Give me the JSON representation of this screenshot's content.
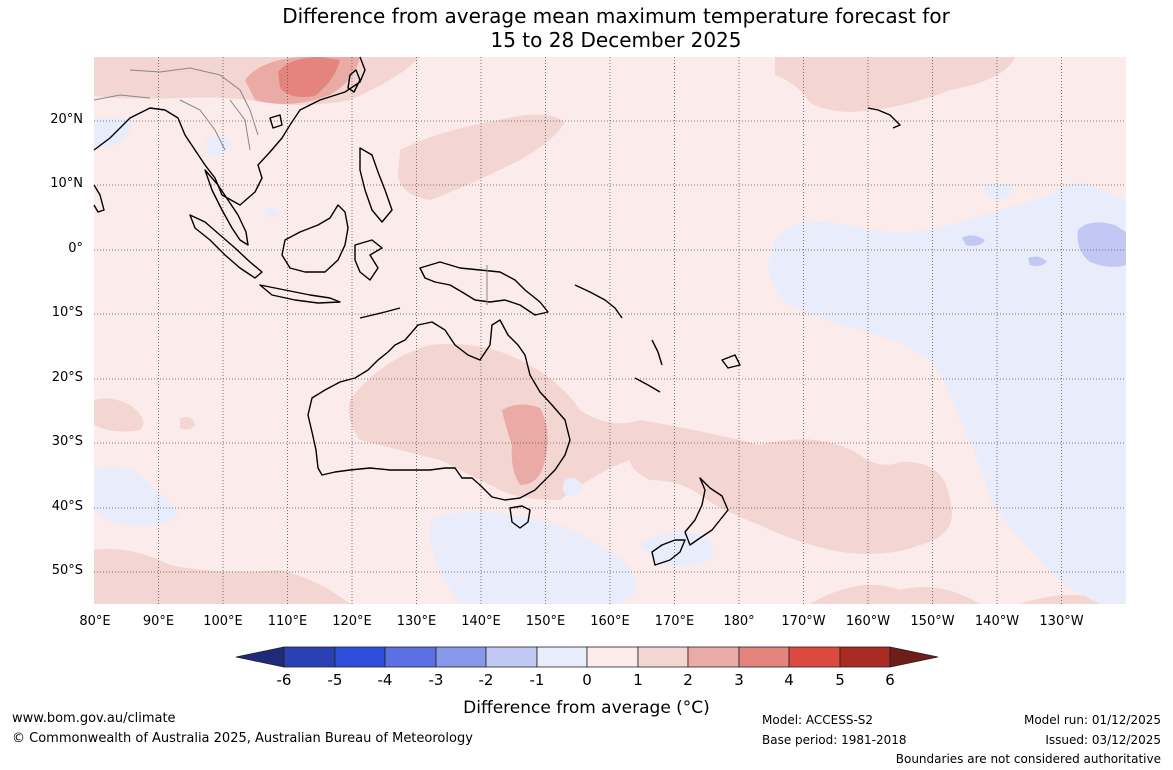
{
  "title": {
    "line1": "Difference from average mean maximum temperature forecast for",
    "line2": "15 to 28 December 2025"
  },
  "map": {
    "lat_labels": [
      "20°N",
      "10°N",
      "0°",
      "10°S",
      "20°S",
      "30°S",
      "40°S",
      "50°S"
    ],
    "lon_labels": [
      "80°E",
      "90°E",
      "100°E",
      "110°E",
      "120°E",
      "130°E",
      "140°E",
      "150°E",
      "160°E",
      "170°E",
      "180°",
      "170°W",
      "160°W",
      "150°W",
      "140°W",
      "130°W"
    ],
    "colors": {
      "bg": "#fbebea",
      "pos1": "#f3d5d2",
      "pos2": "#eaaba6",
      "pos3": "#e4847d",
      "neg1": "#e8ecfb",
      "neg2": "#c1c8f3"
    }
  },
  "colorbar": {
    "ticks": [
      "-6",
      "-5",
      "-4",
      "-3",
      "-2",
      "-1",
      "0",
      "1",
      "2",
      "3",
      "4",
      "5",
      "6"
    ],
    "colors": [
      "#1f2a7a",
      "#2a41b4",
      "#2d4fdc",
      "#5a70e3",
      "#8797e9",
      "#c1c8f3",
      "#e8ecfb",
      "#fbebea",
      "#f3d5d2",
      "#eaaba6",
      "#e4847d",
      "#dc493e",
      "#aa2a24",
      "#6e1d19"
    ],
    "label": "Difference from average (°C)"
  },
  "footer": {
    "website": "www.bom.gov.au/climate",
    "copyright": "© Commonwealth of Australia 2025, Australian Bureau of Meteorology",
    "model": "Model: ACCESS-S2",
    "base_period": "Base period: 1981-2018",
    "model_run": "Model run: 01/12/2025",
    "issued": "Issued: 03/12/2025",
    "disclaimer": "Boundaries are not considered authoritative"
  }
}
